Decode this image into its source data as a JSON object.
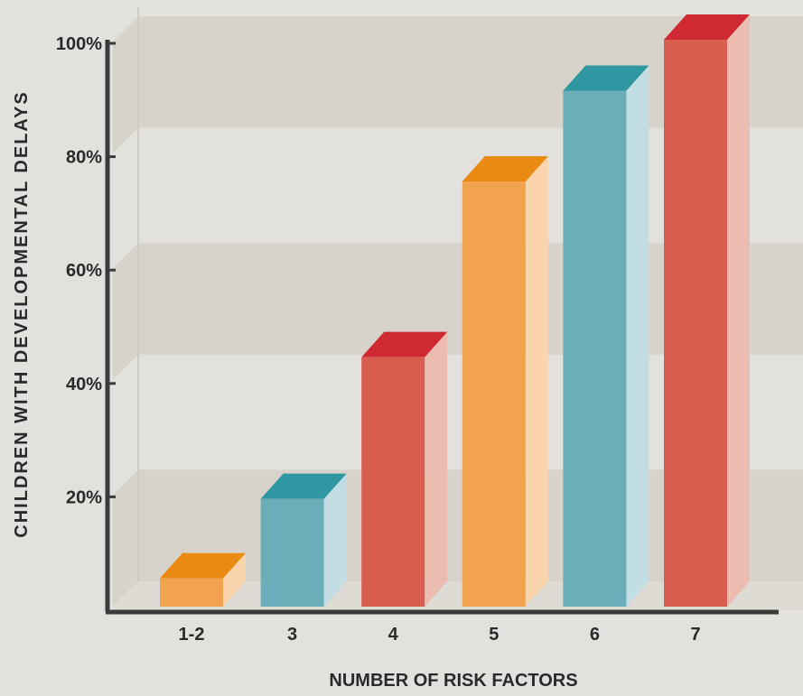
{
  "chart_data": {
    "type": "bar",
    "style": "3d",
    "xlabel": "NUMBER OF RISK FACTORS",
    "ylabel": "CHILDREN WITH DEVELOPMENTAL DELAYS",
    "categories": [
      "1-2",
      "3",
      "4",
      "5",
      "6",
      "7"
    ],
    "values": [
      5,
      19,
      44,
      75,
      91,
      100
    ],
    "ylim": [
      0,
      100
    ],
    "yticks": [
      20,
      40,
      60,
      80,
      100
    ],
    "ytick_labels": [
      "20%",
      "40%",
      "60%",
      "80%",
      "100%"
    ],
    "grid": true,
    "colors": {
      "orange": {
        "front": "#f2a34f",
        "top": "#ea8a12",
        "side": "#f9d4ac"
      },
      "teal": {
        "front": "#6badb8",
        "top": "#2f97a1",
        "side": "#c3dde5"
      },
      "red": {
        "front": "#d85f50",
        "top": "#cf2a33",
        "side": "#ecbcb1"
      }
    },
    "bar_colors": [
      "orange",
      "teal",
      "red",
      "orange",
      "teal",
      "red"
    ],
    "background": {
      "base": "#e2e1dd",
      "band": "#d7d3cb",
      "axis": "#3a3a3a"
    }
  }
}
